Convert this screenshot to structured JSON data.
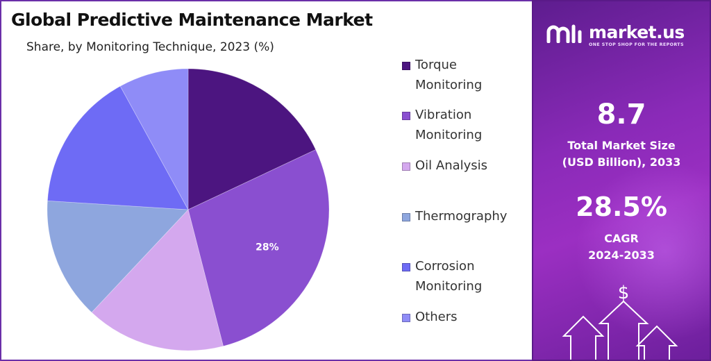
{
  "title": "Global Predictive Maintenance Market",
  "subtitle": "Share, by Monitoring Technique, 2023 (%)",
  "chart_data": {
    "type": "pie",
    "title": "Global Predictive Maintenance Market",
    "subtitle": "Share, by Monitoring Technique, 2023 (%)",
    "slices": [
      {
        "name": "Torque Monitoring",
        "value": 18,
        "color": "#4c1580"
      },
      {
        "name": "Vibration Monitoring",
        "value": 28,
        "color": "#8a4fd0",
        "label": "28%"
      },
      {
        "name": "Oil Analysis",
        "value": 16,
        "color": "#d4a8ee"
      },
      {
        "name": "Thermography",
        "value": 14,
        "color": "#8ea6de"
      },
      {
        "name": "Corrosion Monitoring",
        "value": 16,
        "color": "#6e6bf5"
      },
      {
        "name": "Others",
        "value": 8,
        "color": "#8f8cf7"
      }
    ],
    "start_angle_deg": 0,
    "direction": "clockwise",
    "legend_position": "right"
  },
  "legend": [
    {
      "label": "Torque\nMonitoring",
      "color": "#4c1580"
    },
    {
      "label": "Vibration\nMonitoring",
      "color": "#8a4fd0"
    },
    {
      "label": "Oil Analysis",
      "color": "#d4a8ee"
    },
    {
      "label": "Thermography",
      "color": "#8ea6de"
    },
    {
      "label": "Corrosion\nMonitoring",
      "color": "#6e6bf5"
    },
    {
      "label": "Others",
      "color": "#8f8cf7"
    }
  ],
  "side_panel": {
    "brand_name": "market.us",
    "brand_tagline": "ONE STOP SHOP FOR THE REPORTS",
    "market_size_value": "8.7",
    "market_size_label": "Total Market Size\n(USD Billion), 2033",
    "cagr_value": "28.5%",
    "cagr_label": "CAGR\n2024-2033",
    "currency_symbol": "$",
    "accent_color": "#8a2ab8"
  }
}
